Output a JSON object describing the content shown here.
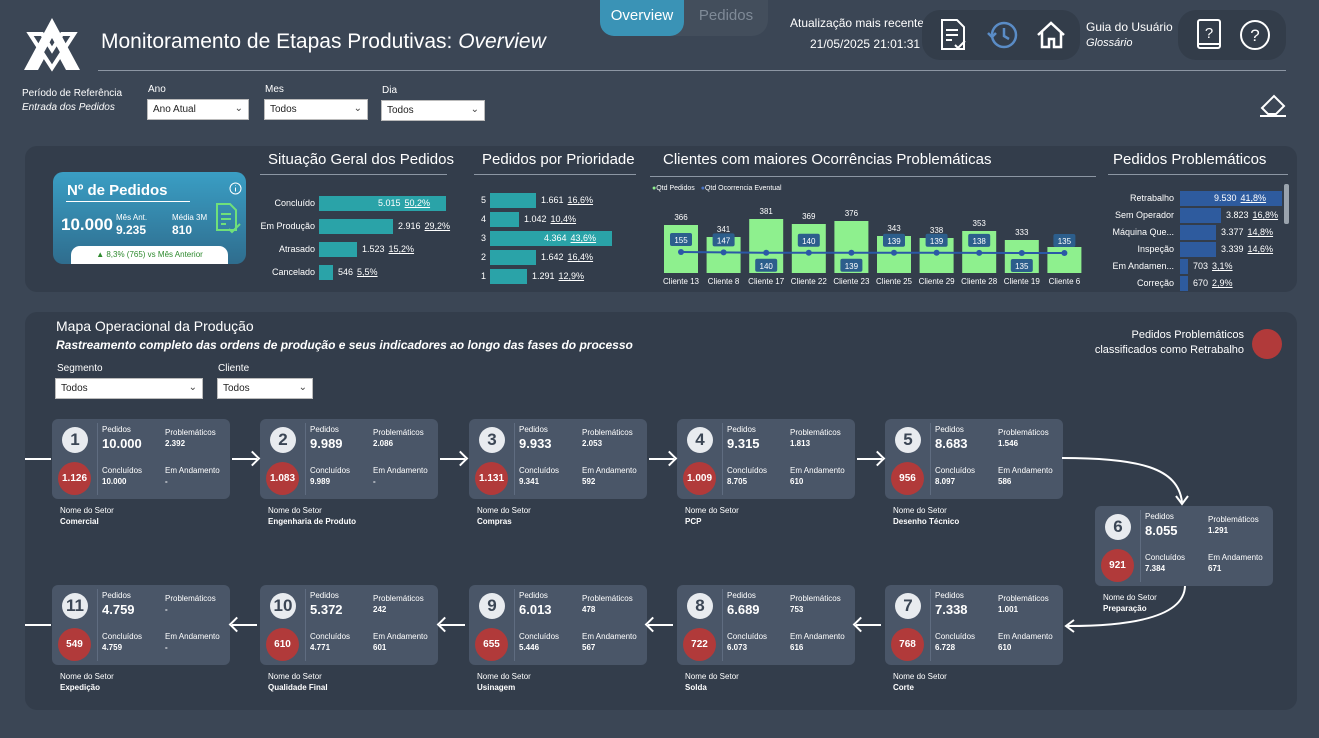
{
  "header": {
    "title": "Monitoramento de Etapas Produtivas:",
    "title_italic": "Overview",
    "update_label": "Atualização mais recente",
    "update_value": "21/05/2025 21:01:31",
    "guide_label": "Guia do Usuário",
    "glossary_label": "Glossário"
  },
  "tabs": [
    {
      "label": "Overview",
      "active": true
    },
    {
      "label": "Pedidos",
      "active": false
    }
  ],
  "filters": {
    "ref_label": "Período de Referência",
    "ref_sub": "Entrada dos Pedidos",
    "ano": {
      "label": "Ano",
      "value": "Ano Atual"
    },
    "mes": {
      "label": "Mes",
      "value": "Todos"
    },
    "dia": {
      "label": "Dia",
      "value": "Todos"
    }
  },
  "kpi": {
    "title": "Nº de Pedidos",
    "value": "10.000",
    "prev_label": "Mês Ant.",
    "prev_value": "9.235",
    "avg_label": "Média 3M",
    "avg_value": "810",
    "delta": "▲ 8,3% (765) vs Mês Anterior"
  },
  "status": {
    "title": "Situação Geral dos Pedidos",
    "rows": [
      {
        "label": "Concluído",
        "value": "5.015",
        "pct": "50,2%",
        "frac": 1.0
      },
      {
        "label": "Em Produção",
        "value": "2.916",
        "pct": "29,2%",
        "frac": 0.58
      },
      {
        "label": "Atrasado",
        "value": "1.523",
        "pct": "15,2%",
        "frac": 0.3
      },
      {
        "label": "Cancelado",
        "value": "546",
        "pct": "5,5%",
        "frac": 0.11
      }
    ]
  },
  "priority": {
    "title": "Pedidos por Prioridade",
    "rows": [
      {
        "label": "5",
        "value": "1.661",
        "pct": "16,6%",
        "frac": 0.38
      },
      {
        "label": "4",
        "value": "1.042",
        "pct": "10,4%",
        "frac": 0.24
      },
      {
        "label": "3",
        "value": "4.364",
        "pct": "43,6%",
        "frac": 1.0
      },
      {
        "label": "2",
        "value": "1.642",
        "pct": "16,4%",
        "frac": 0.38
      },
      {
        "label": "1",
        "value": "1.291",
        "pct": "12,9%",
        "frac": 0.3
      }
    ]
  },
  "clients": {
    "title": "Clientes com maiores Ocorrências Problemáticas",
    "legend": [
      "Qtd Pedidos",
      "Qtd Ocorrencia Eventual"
    ],
    "colors": {
      "bar": "#8ef08e",
      "line": "#2b58a6"
    }
  },
  "chart_data": {
    "type": "bar",
    "categories": [
      "Cliente 13",
      "Cliente 8",
      "Cliente 17",
      "Cliente 22",
      "Cliente 23",
      "Cliente 25",
      "Cliente 29",
      "Cliente 28",
      "Cliente 19",
      "Cliente 6"
    ],
    "series": [
      {
        "name": "Qtd Pedidos",
        "values": [
          366,
          341,
          381,
          369,
          376,
          343,
          338,
          353,
          333,
          318
        ]
      },
      {
        "name": "Qtd Ocorrencia Eventual",
        "values": [
          155,
          147,
          140,
          140,
          139,
          139,
          139,
          138,
          135,
          135
        ]
      }
    ]
  },
  "problems": {
    "title": "Pedidos Problemáticos",
    "rows": [
      {
        "label": "Retrabalho",
        "value": "9.530",
        "pct": "41,8%",
        "frac": 1.0
      },
      {
        "label": "Sem Operador",
        "value": "3.823",
        "pct": "16,8%",
        "frac": 0.4
      },
      {
        "label": "Máquina Que...",
        "value": "3.377",
        "pct": "14,8%",
        "frac": 0.35
      },
      {
        "label": "Inspeção",
        "value": "3.339",
        "pct": "14,6%",
        "frac": 0.35
      },
      {
        "label": "Em Andamen...",
        "value": "703",
        "pct": "3,1%",
        "frac": 0.07
      },
      {
        "label": "Correção",
        "value": "670",
        "pct": "2,9%",
        "frac": 0.07
      }
    ]
  },
  "map": {
    "title": "Mapa Operacional da Produção",
    "subtitle": "Rastreamento completo das ordens de produção e seus indicadores ao longo das fases do processo",
    "legend_line1": "Pedidos Problemáticos",
    "legend_line2": "classificados como Retrabalho",
    "segmento": {
      "label": "Segmento",
      "value": "Todos"
    },
    "cliente": {
      "label": "Cliente",
      "value": "Todos"
    },
    "labels": {
      "pedidos": "Pedidos",
      "problematicos": "Problemáticos",
      "concluidos": "Concluídos",
      "andamento": "Em Andamento",
      "setor": "Nome do Setor"
    },
    "stages": [
      {
        "n": "1",
        "pedidos": "10.000",
        "prob": "2.392",
        "retrab": "1.126",
        "concl": "10.000",
        "and": "-",
        "setor": "Comercial"
      },
      {
        "n": "2",
        "pedidos": "9.989",
        "prob": "2.086",
        "retrab": "1.083",
        "concl": "9.989",
        "and": "-",
        "setor": "Engenharia de Produto"
      },
      {
        "n": "3",
        "pedidos": "9.933",
        "prob": "2.053",
        "retrab": "1.131",
        "concl": "9.341",
        "and": "592",
        "setor": "Compras"
      },
      {
        "n": "4",
        "pedidos": "9.315",
        "prob": "1.813",
        "retrab": "1.009",
        "concl": "8.705",
        "and": "610",
        "setor": "PCP"
      },
      {
        "n": "5",
        "pedidos": "8.683",
        "prob": "1.546",
        "retrab": "956",
        "concl": "8.097",
        "and": "586",
        "setor": "Desenho Técnico"
      },
      {
        "n": "6",
        "pedidos": "8.055",
        "prob": "1.291",
        "retrab": "921",
        "concl": "7.384",
        "and": "671",
        "setor": "Preparação"
      },
      {
        "n": "7",
        "pedidos": "7.338",
        "prob": "1.001",
        "retrab": "768",
        "concl": "6.728",
        "and": "610",
        "setor": "Corte"
      },
      {
        "n": "8",
        "pedidos": "6.689",
        "prob": "753",
        "retrab": "722",
        "concl": "6.073",
        "and": "616",
        "setor": "Solda"
      },
      {
        "n": "9",
        "pedidos": "6.013",
        "prob": "478",
        "retrab": "655",
        "concl": "5.446",
        "and": "567",
        "setor": "Usinagem"
      },
      {
        "n": "10",
        "pedidos": "5.372",
        "prob": "242",
        "retrab": "610",
        "concl": "4.771",
        "and": "601",
        "setor": "Qualidade Final"
      },
      {
        "n": "11",
        "pedidos": "4.759",
        "prob": "-",
        "retrab": "549",
        "concl": "4.759",
        "and": "-",
        "setor": "Expedição"
      }
    ]
  }
}
